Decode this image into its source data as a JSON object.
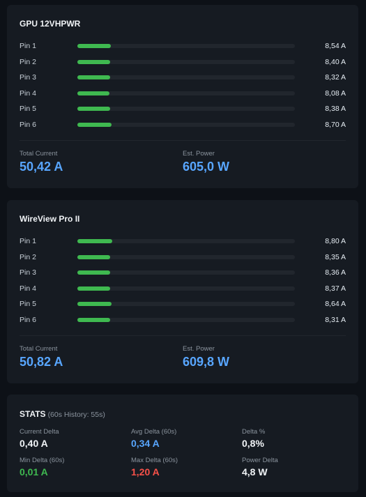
{
  "cards": [
    {
      "title": "GPU 12VHPWR",
      "pins": [
        {
          "label": "Pin 1",
          "value": "8,54 A",
          "fill_fraction": 0.155
        },
        {
          "label": "Pin 2",
          "value": "8,40 A",
          "fill_fraction": 0.15
        },
        {
          "label": "Pin 3",
          "value": "8,32 A",
          "fill_fraction": 0.15
        },
        {
          "label": "Pin 4",
          "value": "8,08 A",
          "fill_fraction": 0.148
        },
        {
          "label": "Pin 5",
          "value": "8,38 A",
          "fill_fraction": 0.15
        },
        {
          "label": "Pin 6",
          "value": "8,70 A",
          "fill_fraction": 0.157
        }
      ],
      "total_current_label": "Total Current",
      "total_current_value": "50,42 A",
      "est_power_label": "Est. Power",
      "est_power_value": "605,0 W"
    },
    {
      "title": "WireView Pro II",
      "pins": [
        {
          "label": "Pin 1",
          "value": "8,80 A",
          "fill_fraction": 0.16
        },
        {
          "label": "Pin 2",
          "value": "8,35 A",
          "fill_fraction": 0.15
        },
        {
          "label": "Pin 3",
          "value": "8,36 A",
          "fill_fraction": 0.15
        },
        {
          "label": "Pin 4",
          "value": "8,37 A",
          "fill_fraction": 0.15
        },
        {
          "label": "Pin 5",
          "value": "8,64 A",
          "fill_fraction": 0.156
        },
        {
          "label": "Pin 6",
          "value": "8,31 A",
          "fill_fraction": 0.15
        }
      ],
      "total_current_label": "Total Current",
      "total_current_value": "50,82 A",
      "est_power_label": "Est. Power",
      "est_power_value": "609,8 W"
    }
  ],
  "stats": {
    "title": "STATS",
    "subtitle": "(60s History: 55s)",
    "items": [
      {
        "label": "Current Delta",
        "value": "0,40 A"
      },
      {
        "label": "Avg Delta (60s)",
        "value": "0,34 A"
      },
      {
        "label": "Delta %",
        "value": "0,8%"
      },
      {
        "label": "Min Delta (60s)",
        "value": "0,01 A"
      },
      {
        "label": "Max Delta (60s)",
        "value": "1,20 A"
      },
      {
        "label": "Power Delta",
        "value": "4,8 W"
      }
    ]
  },
  "colors": {
    "background": "#0d1117",
    "card": "#161b22",
    "bar_fill": "#3fb950",
    "bar_track": "#21262d",
    "accent_blue": "#58a6ff",
    "accent_green": "#3fb950",
    "accent_red": "#f85149"
  }
}
